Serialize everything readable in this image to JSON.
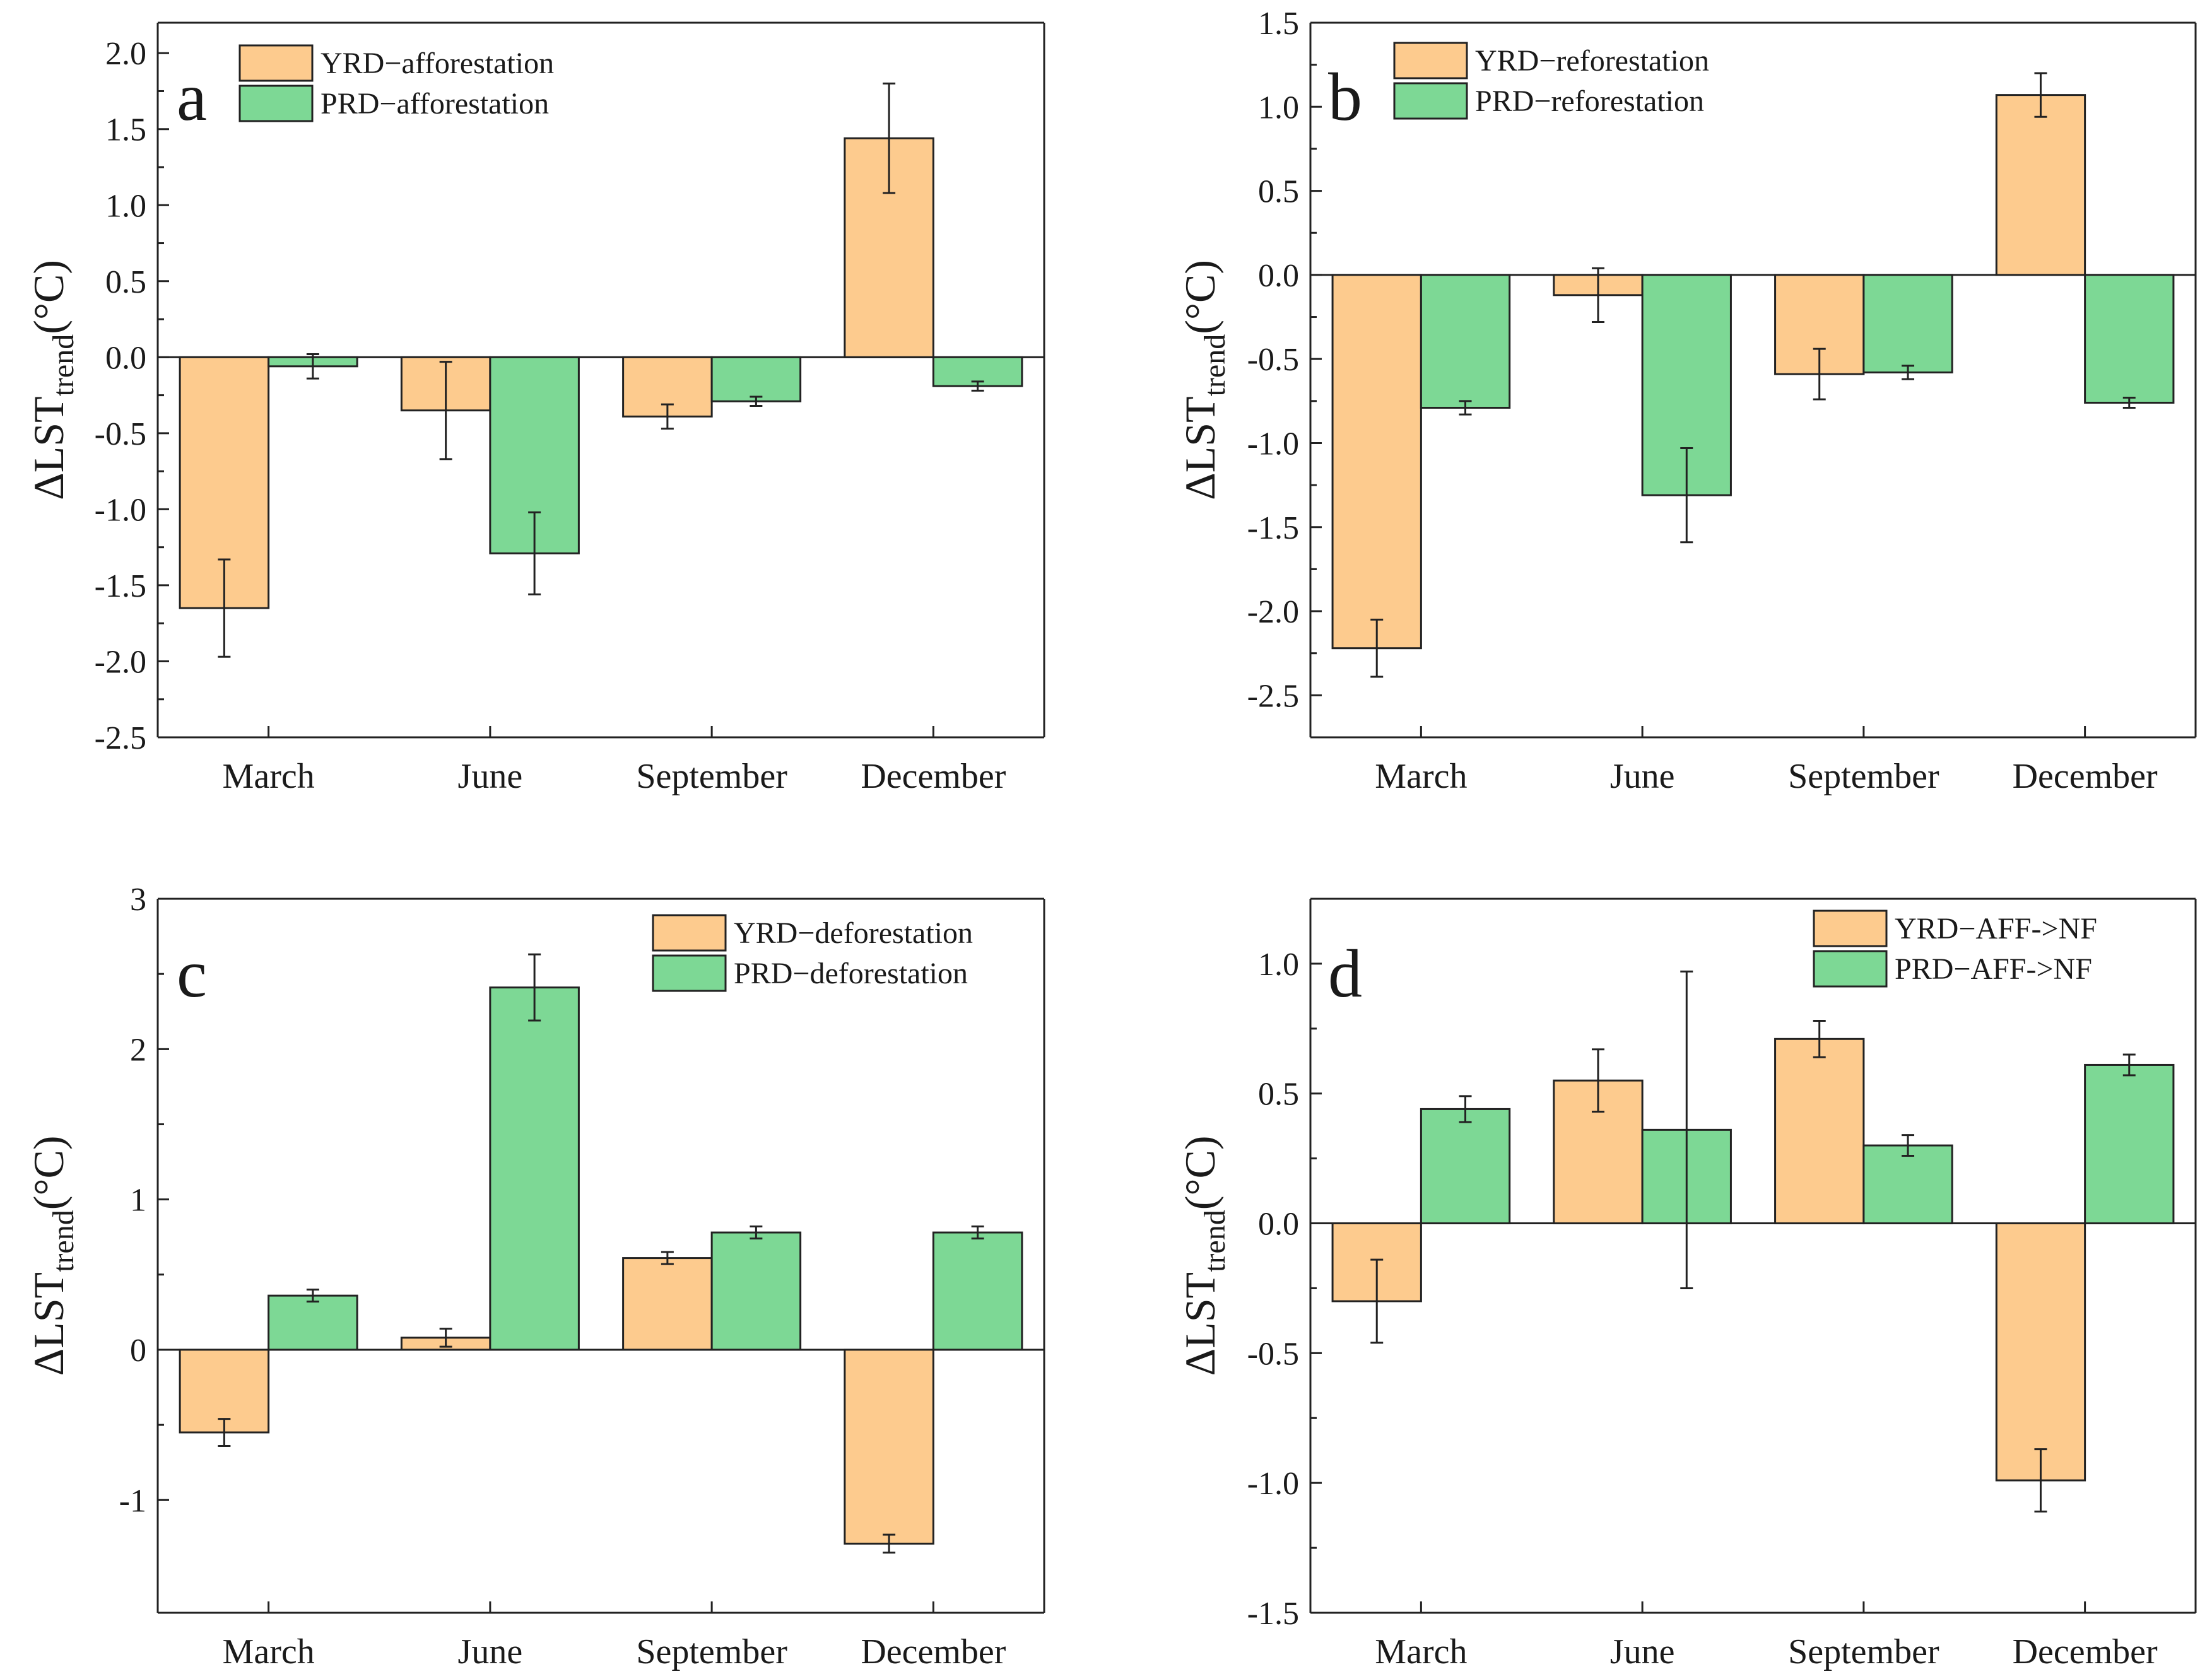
{
  "colors": {
    "yrd_fill": "#FDCB8E",
    "prd_fill": "#7DD895",
    "edge": "#222222"
  },
  "panels": [
    {
      "letter": "a",
      "ylabel_main": "ΔLST",
      "ylabel_sub": "trend",
      "ylabel_unit": "(°C)",
      "chart_ref": 0
    },
    {
      "letter": "b",
      "ylabel_main": "ΔLST",
      "ylabel_sub": "trend",
      "ylabel_unit": "(°C)",
      "chart_ref": 1
    },
    {
      "letter": "c",
      "ylabel_main": "ΔLST",
      "ylabel_sub": "trend",
      "ylabel_unit": "(°C)",
      "chart_ref": 2
    },
    {
      "letter": "d",
      "ylabel_main": "ΔLST",
      "ylabel_sub": "trend",
      "ylabel_unit": "(°C)",
      "chart_ref": 3
    }
  ],
  "chart_data": [
    {
      "type": "bar",
      "panel": "a",
      "ylabel": "ΔLSTtrend(°C)",
      "categories": [
        "March",
        "June",
        "September",
        "December"
      ],
      "ylim": [
        -2.5,
        2.2
      ],
      "yticks": [
        -2.5,
        -2.0,
        -1.5,
        -1.0,
        -0.5,
        0.0,
        0.5,
        1.0,
        1.5,
        2.0
      ],
      "ytick_labels": [
        "-2.5",
        "-2.0",
        "-1.5",
        "-1.0",
        "-0.5",
        "0.0",
        "0.5",
        "1.0",
        "1.5",
        "2.0"
      ],
      "legend_position": "top-left",
      "series": [
        {
          "name": "YRD−afforestation",
          "color": "#FDCB8E",
          "values": [
            -1.65,
            -0.35,
            -0.39,
            1.44
          ],
          "errors": [
            0.32,
            0.32,
            0.08,
            0.36
          ]
        },
        {
          "name": "PRD−afforestation",
          "color": "#7DD895",
          "values": [
            -0.06,
            -1.29,
            -0.29,
            -0.19
          ],
          "errors": [
            0.08,
            0.27,
            0.03,
            0.03
          ]
        }
      ]
    },
    {
      "type": "bar",
      "panel": "b",
      "ylabel": "ΔLSTtrend(°C)",
      "categories": [
        "March",
        "June",
        "September",
        "December"
      ],
      "ylim": [
        -2.75,
        1.5
      ],
      "yticks": [
        -2.5,
        -2.0,
        -1.5,
        -1.0,
        -0.5,
        0.0,
        0.5,
        1.0,
        1.5
      ],
      "ytick_labels": [
        "-2.5",
        "-2.0",
        "-1.5",
        "-1.0",
        "-0.5",
        "0.0",
        "0.5",
        "1.0",
        "1.5"
      ],
      "legend_position": "top-left",
      "series": [
        {
          "name": "YRD−reforestation",
          "color": "#FDCB8E",
          "values": [
            -2.22,
            -0.12,
            -0.59,
            1.07
          ],
          "errors": [
            0.17,
            0.16,
            0.15,
            0.13
          ]
        },
        {
          "name": "PRD−reforestation",
          "color": "#7DD895",
          "values": [
            -0.79,
            -1.31,
            -0.58,
            -0.76
          ],
          "errors": [
            0.04,
            0.28,
            0.04,
            0.03
          ]
        }
      ]
    },
    {
      "type": "bar",
      "panel": "c",
      "ylabel": "ΔLSTtrend(°C)",
      "categories": [
        "March",
        "June",
        "September",
        "December"
      ],
      "ylim": [
        -1.75,
        3.0
      ],
      "yticks": [
        -1,
        0,
        1,
        2,
        3
      ],
      "ytick_labels": [
        "-1",
        "0",
        "1",
        "2",
        "3"
      ],
      "legend_position": "top-right",
      "series": [
        {
          "name": "YRD−deforestation",
          "color": "#FDCB8E",
          "values": [
            -0.55,
            0.08,
            0.61,
            -1.29
          ],
          "errors": [
            0.09,
            0.06,
            0.04,
            0.06
          ]
        },
        {
          "name": "PRD−deforestation",
          "color": "#7DD895",
          "values": [
            0.36,
            2.41,
            0.78,
            0.78
          ],
          "errors": [
            0.04,
            0.22,
            0.04,
            0.04
          ]
        }
      ]
    },
    {
      "type": "bar",
      "panel": "d",
      "ylabel": "ΔLSTtrend(°C)",
      "categories": [
        "March",
        "June",
        "September",
        "December"
      ],
      "ylim": [
        -1.5,
        1.25
      ],
      "yticks": [
        -1.5,
        -1.0,
        -0.5,
        0.0,
        0.5,
        1.0
      ],
      "ytick_labels": [
        "-1.5",
        "-1.0",
        "-0.5",
        "0.0",
        "0.5",
        "1.0"
      ],
      "legend_position": "top-right",
      "series": [
        {
          "name": "YRD−AFF->NF",
          "color": "#FDCB8E",
          "values": [
            -0.3,
            0.55,
            0.71,
            -0.99
          ],
          "errors": [
            0.16,
            0.12,
            0.07,
            0.12
          ]
        },
        {
          "name": "PRD−AFF->NF",
          "color": "#7DD895",
          "values": [
            0.44,
            0.36,
            0.3,
            0.61
          ],
          "errors": [
            0.05,
            0.61,
            0.04,
            0.04
          ]
        }
      ]
    }
  ]
}
